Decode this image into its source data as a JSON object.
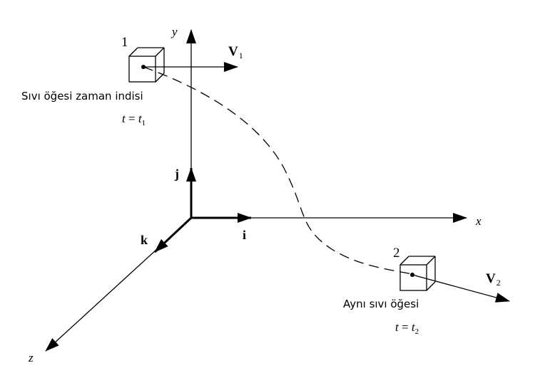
{
  "axes": {
    "x_label": "x",
    "y_label": "y",
    "z_label": "z",
    "unit_i": "i",
    "unit_j": "j",
    "unit_k": "k"
  },
  "element1": {
    "number": "1",
    "velocity": "V",
    "velocity_sub": "1",
    "caption": "Sıvı öğesi zaman indisi",
    "time_lhs": "t",
    "time_eq": " = ",
    "time_rhs": "t",
    "time_sub": "1"
  },
  "element2": {
    "number": "2",
    "velocity": "V",
    "velocity_sub": "2",
    "caption": "Aynı sıvı öğesi",
    "time_lhs": "t",
    "time_eq": " = ",
    "time_rhs": "t",
    "time_sub": "2"
  }
}
